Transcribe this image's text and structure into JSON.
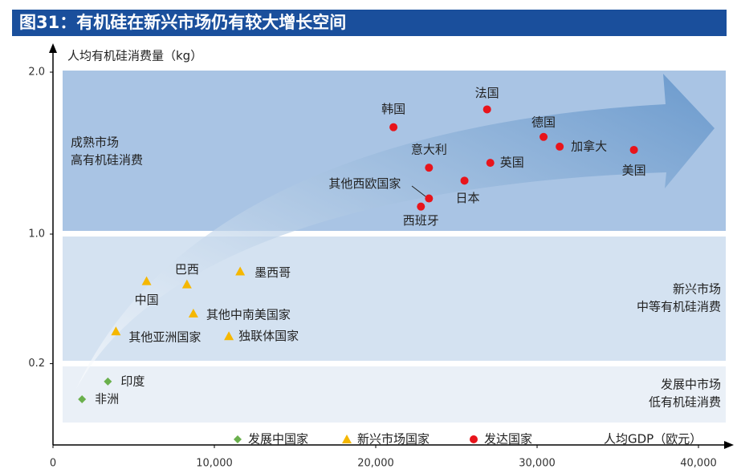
{
  "chart_data": {
    "type": "scatter",
    "title": "图31：有机硅在新兴市场仍有较大增长空间",
    "ylabel": "人均有机硅消费量（kg）",
    "xlabel": "人均GDP（欧元）",
    "xlim": [
      0,
      40000
    ],
    "xticks": [
      0,
      {
        "value": 10000,
        "label": "10,000"
      },
      {
        "value": 20000,
        "label": "20,000"
      },
      {
        "value": 30000,
        "label": "30,000"
      },
      {
        "value": 40000,
        "label": "40,000"
      }
    ],
    "ylim": [
      -0.3,
      2.15
    ],
    "yticks": [
      0.2,
      {
        "value": 1.0,
        "label": "1.0"
      },
      {
        "value": 2.0,
        "label": "2.0"
      }
    ],
    "regions": [
      [
        "成熟市场",
        "高有机硅消费"
      ],
      [
        "新兴市场",
        "中等有机硅消费"
      ],
      [
        "发展中市场",
        "低有机硅消费"
      ]
    ],
    "series": [
      {
        "name": "发展中国家",
        "color": "#6ab04c",
        "marker": "diamond",
        "labels": [
          "印度",
          "非洲"
        ],
        "x": [
          3400,
          1800
        ],
        "values": [
          0.09,
          -0.02
        ]
      },
      {
        "name": "新兴市场国家",
        "color": "#f5b700",
        "marker": "triangle",
        "labels": [
          "中国",
          "巴西",
          "墨西哥",
          "其他中南美国家",
          "其他亚洲国家",
          "独联体国家"
        ],
        "x": [
          5800,
          8300,
          11600,
          8700,
          3900,
          10900
        ],
        "values": [
          0.71,
          0.69,
          0.77,
          0.51,
          0.4,
          0.37
        ]
      },
      {
        "name": "发达国家",
        "color": "#e8141b",
        "marker": "circle",
        "labels": [
          "韩国",
          "法国",
          "德国",
          "加拿大",
          "美国",
          "意大利",
          "英国",
          "日本",
          "其他西欧国家",
          "西班牙"
        ],
        "x": [
          21100,
          26900,
          30400,
          31400,
          36000,
          23300,
          27100,
          25500,
          23300,
          22800
        ],
        "values": [
          1.66,
          1.77,
          1.6,
          1.54,
          1.52,
          1.41,
          1.44,
          1.33,
          1.22,
          1.17
        ]
      }
    ]
  }
}
